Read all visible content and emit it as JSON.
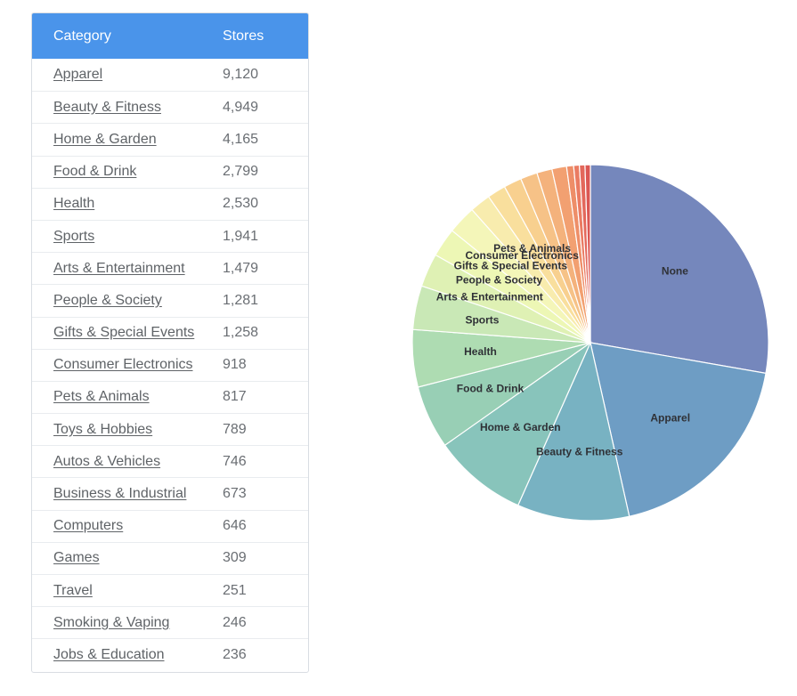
{
  "table": {
    "header": {
      "category": "Category",
      "stores": "Stores"
    },
    "rows": [
      {
        "category": "Apparel",
        "stores": "9,120"
      },
      {
        "category": "Beauty & Fitness",
        "stores": "4,949"
      },
      {
        "category": "Home & Garden",
        "stores": "4,165"
      },
      {
        "category": "Food & Drink",
        "stores": "2,799"
      },
      {
        "category": "Health",
        "stores": "2,530"
      },
      {
        "category": "Sports",
        "stores": "1,941"
      },
      {
        "category": "Arts & Entertainment",
        "stores": "1,479"
      },
      {
        "category": "People & Society",
        "stores": "1,281"
      },
      {
        "category": "Gifts & Special Events",
        "stores": "1,258"
      },
      {
        "category": "Consumer Electronics",
        "stores": "918"
      },
      {
        "category": "Pets & Animals",
        "stores": "817"
      },
      {
        "category": "Toys & Hobbies",
        "stores": "789"
      },
      {
        "category": "Autos & Vehicles",
        "stores": "746"
      },
      {
        "category": "Business & Industrial",
        "stores": "673"
      },
      {
        "category": "Computers",
        "stores": "646"
      },
      {
        "category": "Games",
        "stores": "309"
      },
      {
        "category": "Travel",
        "stores": "251"
      },
      {
        "category": "Smoking & Vaping",
        "stores": "246"
      },
      {
        "category": "Jobs & Education",
        "stores": "236"
      }
    ]
  },
  "chart_data": {
    "type": "pie",
    "title": "",
    "labels": [
      "None",
      "Apparel",
      "Beauty & Fitness",
      "Home & Garden",
      "Food & Drink",
      "Health",
      "Sports",
      "Arts & Entertainment",
      "People & Society",
      "Gifts & Special Events",
      "Consumer Electronics",
      "Pets & Animals",
      "Toys & Hobbies",
      "Autos & Vehicles",
      "Business & Industrial",
      "Computers",
      "Games",
      "Travel",
      "Smoking & Vaping",
      "Jobs & Education"
    ],
    "values": [
      13500,
      9120,
      4949,
      4165,
      2799,
      2530,
      1941,
      1479,
      1281,
      1258,
      918,
      817,
      789,
      746,
      673,
      646,
      309,
      251,
      246,
      236
    ],
    "shown_labels": [
      "None",
      "Apparel",
      "Beauty & Fitness",
      "Home & Garden",
      "Food & Drink",
      "Health",
      "Sports",
      "Arts & Entertainment",
      "People & Society",
      "Gifts & Special Events",
      "Consumer Electronics",
      "Pets & Animals"
    ],
    "colors": [
      "#7587bc",
      "#6e9dc4",
      "#78b2c2",
      "#88c4bb",
      "#98cfb5",
      "#aedcb2",
      "#c9e8b6",
      "#dff1b4",
      "#edf7b5",
      "#f4f6b9",
      "#f8ecae",
      "#f9df9d",
      "#f8d08f",
      "#f6c287",
      "#f4b27c",
      "#f2a071",
      "#ee8e68",
      "#ea7b62",
      "#e3685b",
      "#db5753"
    ],
    "start_position": "top",
    "direction": "clockwise",
    "label_color": "#2f3136"
  }
}
